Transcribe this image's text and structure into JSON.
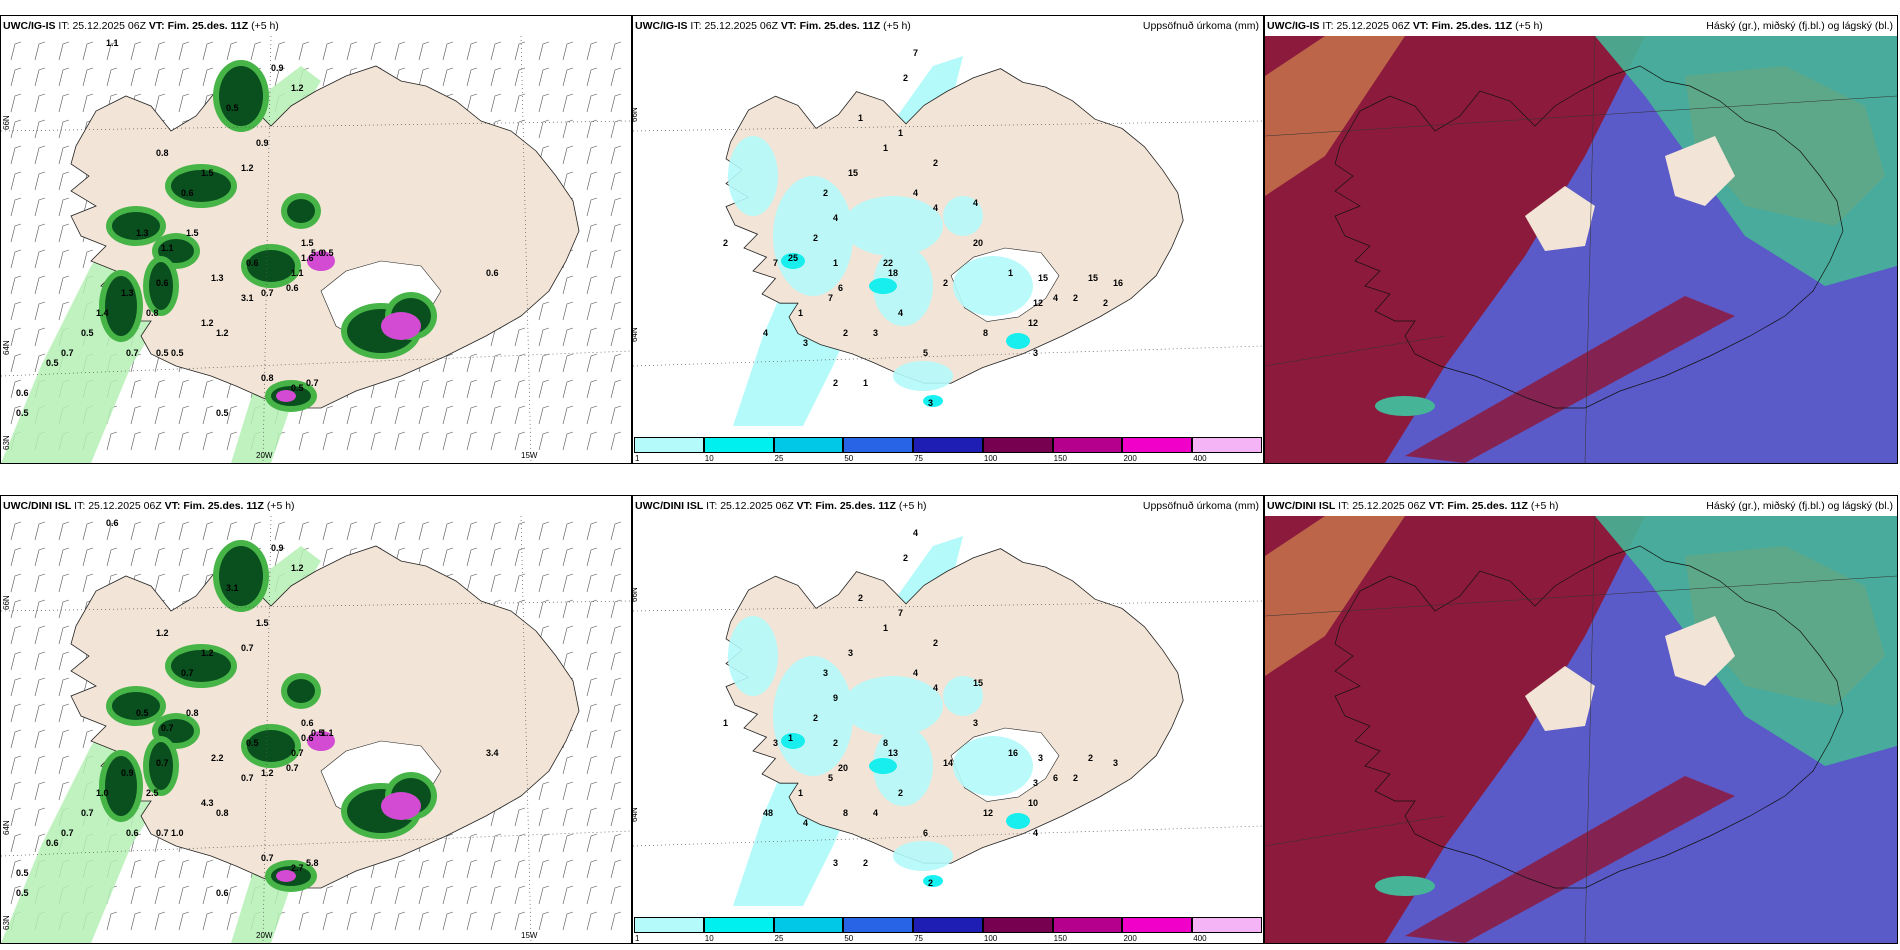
{
  "panels": [
    {
      "id": "top-left",
      "model": "UWC/IG-IS",
      "it_label": "IT:",
      "it_value": "25.12.2025 06Z",
      "vt_label": "VT:",
      "vt_value": "Fim. 25.des. 11Z",
      "lead": "(+5 h)",
      "right_title": "",
      "lat_labels": [
        "66N",
        "64N",
        "63N"
      ],
      "lon_labels": [
        "20W",
        "15W"
      ],
      "values": [
        "1.1",
        "0.9",
        "1.2",
        "0.5",
        "0.8",
        "0.6",
        "1.2",
        "0.9",
        "1.5",
        "1.3",
        "1.5",
        "0.6",
        "1.3",
        "1.4",
        "1.1",
        "0.8",
        "1.3",
        "3.1",
        "1.2",
        "1.1",
        "0.7",
        "1.5",
        "0.6",
        "0.5",
        "1.2",
        "0.6",
        "0.7",
        "0.5",
        "0.6",
        "0.7",
        "0.5",
        "0.5",
        "0.8",
        "0.5",
        "5.0",
        "1.6",
        "0.5",
        "0.7",
        "0.6",
        "0.5",
        "0.5"
      ]
    },
    {
      "id": "top-middle",
      "model": "UWC/IG-IS",
      "it_label": "IT:",
      "it_value": "25.12.2025 06Z",
      "vt_label": "VT:",
      "vt_value": "Fim. 25.des. 11Z",
      "lead": "(+5 h)",
      "right_title": "Uppsöfnuð úrkoma (mm)",
      "lat_labels": [
        "66N",
        "64N"
      ],
      "values": [
        "7",
        "2",
        "1",
        "1",
        "1",
        "15",
        "2",
        "2",
        "4",
        "2",
        "1",
        "2",
        "7",
        "25",
        "4",
        "4",
        "4",
        "20",
        "18",
        "22",
        "6",
        "2",
        "1",
        "15",
        "12",
        "12",
        "8",
        "3",
        "4",
        "2",
        "3",
        "5",
        "7",
        "4",
        "3",
        "2",
        "1",
        "3",
        "1",
        "4",
        "15",
        "16",
        "2",
        "2"
      ]
    },
    {
      "id": "top-right",
      "model": "UWC/IG-IS",
      "it_label": "IT:",
      "it_value": "25.12.2025 06Z",
      "vt_label": "VT:",
      "vt_value": "Fim. 25.des. 11Z",
      "lead": "(+5 h)",
      "right_title": "Háský (gr.), miðský (fj.bl.) og lágský (bl.)"
    },
    {
      "id": "bottom-left",
      "model": "UWC/DINI ISL",
      "it_label": "IT:",
      "it_value": "25.12.2025 06Z",
      "vt_label": "VT:",
      "vt_value": "Fim. 25.des. 11Z",
      "lead": "(+5 h)",
      "right_title": "",
      "lat_labels": [
        "66N",
        "64N",
        "63N"
      ],
      "lon_labels": [
        "20W",
        "15W"
      ],
      "values": [
        "0.6",
        "0.9",
        "1.2",
        "3.1",
        "1.2",
        "0.7",
        "0.7",
        "1.5",
        "1.2",
        "0.5",
        "0.8",
        "0.7",
        "0.9",
        "1.0",
        "0.7",
        "2.5",
        "2.2",
        "0.7",
        "0.8",
        "0.7",
        "1.2",
        "0.6",
        "0.5",
        "0.7",
        "4.3",
        "0.7",
        "0.7",
        "0.6",
        "0.5",
        "0.6",
        "0.7",
        "1.0",
        "0.7",
        "1.1",
        "0.5",
        "0.6",
        "2.7",
        "5.8",
        "3.4",
        "0.6",
        "0.5"
      ]
    },
    {
      "id": "bottom-middle",
      "model": "UWC/DINI ISL",
      "it_label": "IT:",
      "it_value": "25.12.2025 06Z",
      "vt_label": "VT:",
      "vt_value": "Fim. 25.des. 11Z",
      "lead": "(+5 h)",
      "right_title": "Uppsöfnuð úrkoma (mm)",
      "lat_labels": [
        "66N",
        "64N"
      ],
      "values": [
        "4",
        "2",
        "2",
        "7",
        "1",
        "3",
        "3",
        "2",
        "9",
        "2",
        "2",
        "1",
        "3",
        "1",
        "4",
        "15",
        "4",
        "3",
        "13",
        "8",
        "20",
        "14",
        "16",
        "3",
        "3",
        "10",
        "12",
        "4",
        "6",
        "8",
        "4",
        "6",
        "5",
        "2",
        "4",
        "3",
        "2",
        "2",
        "1",
        "48",
        "2",
        "3",
        "2"
      ]
    },
    {
      "id": "bottom-right",
      "model": "UWC/DINI ISL",
      "it_label": "IT:",
      "it_value": "25.12.2025 06Z",
      "vt_label": "VT:",
      "vt_value": "Fim. 25.des. 11Z",
      "lead": "(+5 h)",
      "right_title": "Háský (gr.), miðský (fj.bl.) og lágský (bl.)"
    }
  ],
  "colorbar": {
    "labels": [
      "1",
      "10",
      "25",
      "50",
      "75",
      "100",
      "150",
      "200",
      "400"
    ],
    "colors": [
      "#b4fafa",
      "#00f0f0",
      "#00c8e6",
      "#2864e6",
      "#1e1eb4",
      "#780050",
      "#b4008c",
      "#f000c8",
      "#f5b4f5"
    ]
  },
  "palette": {
    "land": "#f2e4d6",
    "sea": "#ffffff",
    "precip_light": "#b4f0b4",
    "precip_mid": "#46b446",
    "precip_dark": "#0a501e",
    "precip_pink": "#d24bd2",
    "cloud_low": "#5a5ac8",
    "cloud_mid": "#8c1a3c",
    "cloud_high": "#46b496"
  }
}
